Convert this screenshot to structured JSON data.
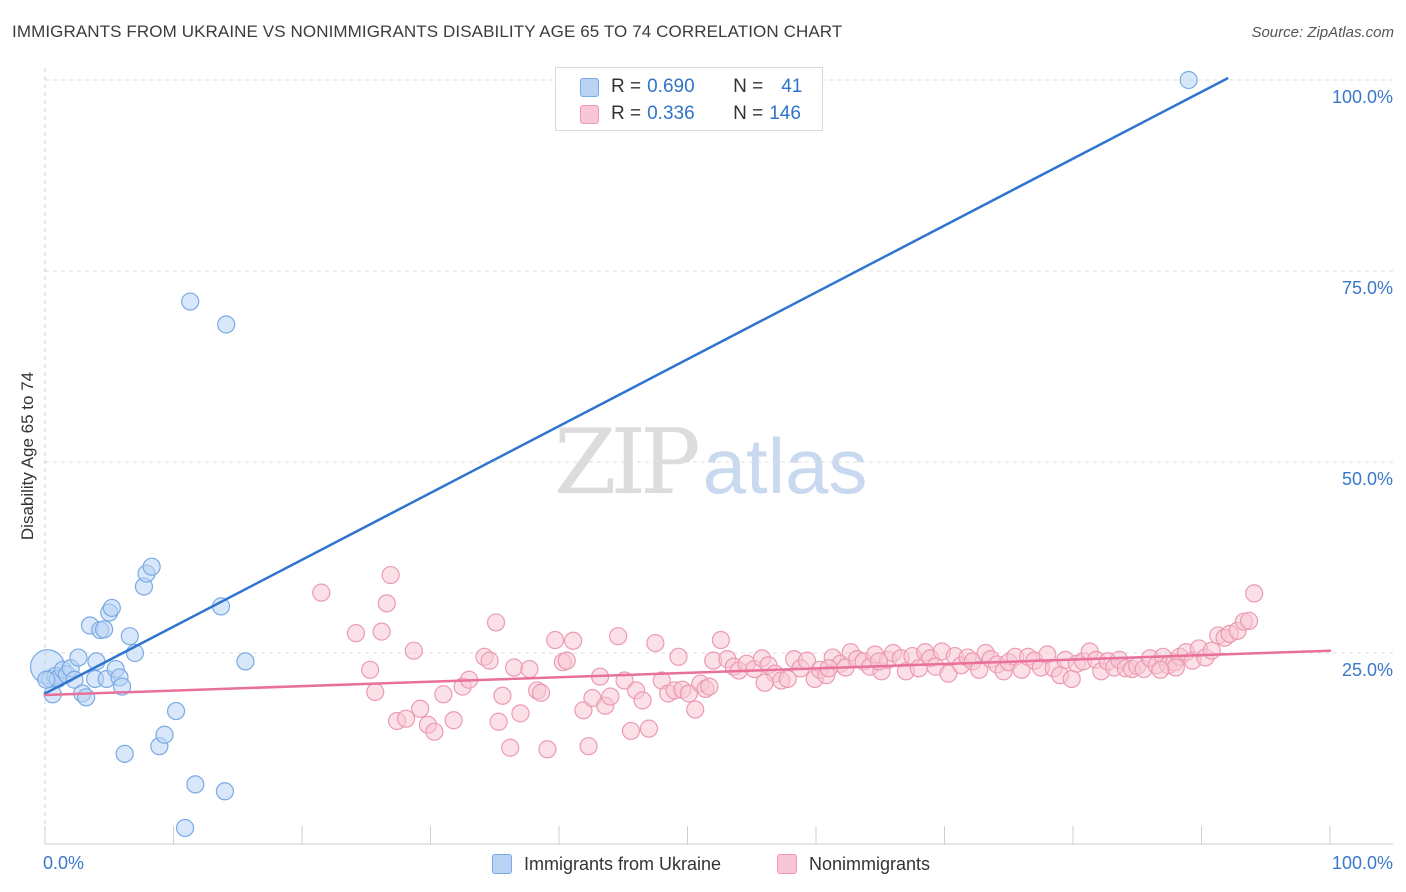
{
  "title": "IMMIGRANTS FROM UKRAINE VS NONIMMIGRANTS DISABILITY AGE 65 TO 74 CORRELATION CHART",
  "source": "Source: ZipAtlas.com",
  "watermark": {
    "zip": "ZIP",
    "atlas": "atlas"
  },
  "legend": {
    "r_label": "R =",
    "n_label": "N =",
    "rows": [
      {
        "name": "Immigrants from Ukraine",
        "r": "0.690",
        "n": "41",
        "fill": "#b8d3f4",
        "stroke": "#7aaae4"
      },
      {
        "name": "Nonimmigrants",
        "r": "0.336",
        "n": "146",
        "fill": "#f8c6d4",
        "stroke": "#ec9ab2"
      }
    ]
  },
  "colors": {
    "blue_line": "#2f74d0",
    "pink_line": "#e8709a",
    "axis_label": "#3a78c9"
  },
  "chart_data": {
    "type": "scatter",
    "title": "IMMIGRANTS FROM UKRAINE VS NONIMMIGRANTS DISABILITY AGE 65 TO 74 CORRELATION CHART",
    "xlabel": "",
    "ylabel": "Disability Age 65 to 74",
    "xlim": [
      0,
      100
    ],
    "ylim": [
      0,
      102.5
    ],
    "x_tick_labels": [
      "0.0%",
      "100.0%"
    ],
    "y_ticks": [
      25,
      50,
      75,
      100
    ],
    "y_tick_labels": [
      "25.0%",
      "50.0%",
      "75.0%",
      "100.0%"
    ],
    "grid": true,
    "series": [
      {
        "name": "Immigrants from Ukraine",
        "r": 0.69,
        "n": 41,
        "trend": {
          "x": [
            0,
            92
          ],
          "y": [
            19.7,
            100.2
          ]
        },
        "points": [
          [
            0.2,
            23.2
          ],
          [
            0.4,
            21.6
          ],
          [
            0.6,
            19.6
          ],
          [
            0.8,
            22.0
          ],
          [
            1.0,
            21.6
          ],
          [
            1.4,
            22.8
          ],
          [
            1.7,
            22.2
          ],
          [
            2.0,
            23.0
          ],
          [
            2.3,
            21.5
          ],
          [
            2.6,
            24.4
          ],
          [
            2.9,
            19.7
          ],
          [
            3.2,
            19.2
          ],
          [
            3.5,
            28.6
          ],
          [
            3.9,
            21.6
          ],
          [
            4.0,
            23.9
          ],
          [
            4.3,
            28.0
          ],
          [
            4.6,
            28.1
          ],
          [
            4.8,
            21.6
          ],
          [
            5.0,
            30.3
          ],
          [
            5.2,
            30.9
          ],
          [
            5.5,
            22.9
          ],
          [
            5.8,
            21.8
          ],
          [
            6.0,
            20.6
          ],
          [
            6.2,
            11.8
          ],
          [
            6.6,
            27.2
          ],
          [
            7.0,
            25.0
          ],
          [
            7.7,
            33.7
          ],
          [
            7.9,
            35.4
          ],
          [
            8.3,
            36.3
          ],
          [
            8.9,
            12.8
          ],
          [
            9.3,
            14.3
          ],
          [
            10.2,
            17.4
          ],
          [
            10.9,
            2.1
          ],
          [
            11.3,
            71.0
          ],
          [
            11.7,
            7.8
          ],
          [
            13.7,
            31.1
          ],
          [
            14.0,
            6.9
          ],
          [
            14.1,
            68.0
          ],
          [
            15.6,
            23.9
          ],
          [
            89.0,
            100.0
          ],
          [
            0.1,
            21.5
          ]
        ]
      },
      {
        "name": "Nonimmigrants",
        "r": 0.336,
        "n": 146,
        "trend": {
          "x": [
            0,
            100
          ],
          "y": [
            19.5,
            25.3
          ]
        },
        "points": [
          [
            21.5,
            32.9
          ],
          [
            24.2,
            27.6
          ],
          [
            25.3,
            22.8
          ],
          [
            25.7,
            19.9
          ],
          [
            26.2,
            27.8
          ],
          [
            26.6,
            31.5
          ],
          [
            26.9,
            35.2
          ],
          [
            27.4,
            16.1
          ],
          [
            28.1,
            16.4
          ],
          [
            28.7,
            25.3
          ],
          [
            29.2,
            17.7
          ],
          [
            29.8,
            15.6
          ],
          [
            30.3,
            14.7
          ],
          [
            31.0,
            19.6
          ],
          [
            31.8,
            16.2
          ],
          [
            32.5,
            20.6
          ],
          [
            33.0,
            21.5
          ],
          [
            34.2,
            24.5
          ],
          [
            34.6,
            24.0
          ],
          [
            35.1,
            29.0
          ],
          [
            35.3,
            16.0
          ],
          [
            35.6,
            19.4
          ],
          [
            36.2,
            12.6
          ],
          [
            36.5,
            23.1
          ],
          [
            37.0,
            17.1
          ],
          [
            37.7,
            22.9
          ],
          [
            38.3,
            20.1
          ],
          [
            38.6,
            19.8
          ],
          [
            39.1,
            12.4
          ],
          [
            39.7,
            26.7
          ],
          [
            40.3,
            23.8
          ],
          [
            40.6,
            24.0
          ],
          [
            41.1,
            26.6
          ],
          [
            41.9,
            17.5
          ],
          [
            42.3,
            12.8
          ],
          [
            42.6,
            19.1
          ],
          [
            43.2,
            21.9
          ],
          [
            43.6,
            18.1
          ],
          [
            44.0,
            19.3
          ],
          [
            44.6,
            27.2
          ],
          [
            45.1,
            21.4
          ],
          [
            45.6,
            14.8
          ],
          [
            46.0,
            20.1
          ],
          [
            46.5,
            18.8
          ],
          [
            47.0,
            15.1
          ],
          [
            47.5,
            26.3
          ],
          [
            48.0,
            21.4
          ],
          [
            48.5,
            19.7
          ],
          [
            49.0,
            20.1
          ],
          [
            49.6,
            20.2
          ],
          [
            50.1,
            19.7
          ],
          [
            50.6,
            17.6
          ],
          [
            51.0,
            21.0
          ],
          [
            51.4,
            20.3
          ],
          [
            51.7,
            20.6
          ],
          [
            52.0,
            24.0
          ],
          [
            52.6,
            26.7
          ],
          [
            53.1,
            24.2
          ],
          [
            53.6,
            23.2
          ],
          [
            54.0,
            22.7
          ],
          [
            54.6,
            23.6
          ],
          [
            55.2,
            22.9
          ],
          [
            55.8,
            24.3
          ],
          [
            56.3,
            23.4
          ],
          [
            56.8,
            22.3
          ],
          [
            57.3,
            21.4
          ],
          [
            57.8,
            21.6
          ],
          [
            58.3,
            24.2
          ],
          [
            58.8,
            23.0
          ],
          [
            59.3,
            24.0
          ],
          [
            59.9,
            21.6
          ],
          [
            60.3,
            22.8
          ],
          [
            60.8,
            22.1
          ],
          [
            61.3,
            24.4
          ],
          [
            61.9,
            23.6
          ],
          [
            62.3,
            23.1
          ],
          [
            62.7,
            25.1
          ],
          [
            63.2,
            24.2
          ],
          [
            63.7,
            23.9
          ],
          [
            64.2,
            23.2
          ],
          [
            64.6,
            24.8
          ],
          [
            65.1,
            22.6
          ],
          [
            65.6,
            24.1
          ],
          [
            66.0,
            25.0
          ],
          [
            66.6,
            24.3
          ],
          [
            67.0,
            22.6
          ],
          [
            67.5,
            24.6
          ],
          [
            68.0,
            23.0
          ],
          [
            68.5,
            25.1
          ],
          [
            68.9,
            24.3
          ],
          [
            69.3,
            23.2
          ],
          [
            69.8,
            25.2
          ],
          [
            70.3,
            22.3
          ],
          [
            70.8,
            24.6
          ],
          [
            71.3,
            23.4
          ],
          [
            71.8,
            24.4
          ],
          [
            72.2,
            23.9
          ],
          [
            72.7,
            22.8
          ],
          [
            73.2,
            25.0
          ],
          [
            73.6,
            24.2
          ],
          [
            74.1,
            23.5
          ],
          [
            74.6,
            22.6
          ],
          [
            75.0,
            23.8
          ],
          [
            75.5,
            24.5
          ],
          [
            76.0,
            22.8
          ],
          [
            76.5,
            24.5
          ],
          [
            77.0,
            24.0
          ],
          [
            77.5,
            23.1
          ],
          [
            78.0,
            24.8
          ],
          [
            78.5,
            23.0
          ],
          [
            79.0,
            22.1
          ],
          [
            79.4,
            24.1
          ],
          [
            79.9,
            21.6
          ],
          [
            80.3,
            23.6
          ],
          [
            80.8,
            23.9
          ],
          [
            81.3,
            25.2
          ],
          [
            81.8,
            24.1
          ],
          [
            82.2,
            22.6
          ],
          [
            82.7,
            23.9
          ],
          [
            83.2,
            23.1
          ],
          [
            83.6,
            24.1
          ],
          [
            84.1,
            23.0
          ],
          [
            84.6,
            22.9
          ],
          [
            85.0,
            23.3
          ],
          [
            85.5,
            22.9
          ],
          [
            86.0,
            24.3
          ],
          [
            86.5,
            23.4
          ],
          [
            87.0,
            24.5
          ],
          [
            87.4,
            23.4
          ],
          [
            87.9,
            23.8
          ],
          [
            88.3,
            24.5
          ],
          [
            88.8,
            25.1
          ],
          [
            89.3,
            24.0
          ],
          [
            89.8,
            25.6
          ],
          [
            90.3,
            24.4
          ],
          [
            90.8,
            25.3
          ],
          [
            91.3,
            27.3
          ],
          [
            91.8,
            27.0
          ],
          [
            92.2,
            27.5
          ],
          [
            92.8,
            27.9
          ],
          [
            93.3,
            29.1
          ],
          [
            93.7,
            29.2
          ],
          [
            94.1,
            32.8
          ],
          [
            88.0,
            23.1
          ],
          [
            86.8,
            22.8
          ],
          [
            64.9,
            23.9
          ],
          [
            61.0,
            23.0
          ],
          [
            56.0,
            21.1
          ],
          [
            49.3,
            24.5
          ]
        ]
      }
    ]
  }
}
